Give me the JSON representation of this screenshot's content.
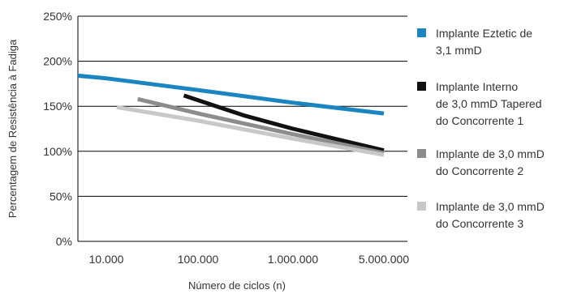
{
  "chart_data": {
    "type": "line",
    "xlabel": "Número de ciclos (n)",
    "ylabel": "Percentagem de Resistência à Fadiga",
    "x_scale": "log",
    "x_ticks": [
      10000,
      100000,
      1000000,
      5000000
    ],
    "x_tick_labels": [
      "10.000",
      "100.000",
      "1.000.000",
      "5.000.000"
    ],
    "ylim": [
      0,
      250
    ],
    "y_ticks": [
      0,
      50,
      100,
      150,
      200,
      250
    ],
    "y_tick_labels": [
      "0%",
      "50%",
      "100%",
      "150%",
      "200%",
      "250%"
    ],
    "grid": "horizontal",
    "legend_position": "right",
    "series": [
      {
        "name": "Implante Eztetic de 3,1 mmD",
        "legend_lines": [
          "Implante Eztetic de",
          "3,1 mmD"
        ],
        "color": "#1a85c0",
        "points": [
          [
            3000,
            186
          ],
          [
            10000,
            181
          ],
          [
            100000,
            168
          ],
          [
            1000000,
            154
          ],
          [
            5000000,
            142
          ]
        ]
      },
      {
        "name": "Implante Interno de 3,0 mmD Tapered do Concorrente 1",
        "legend_lines": [
          "Implante Interno",
          "de 3,0 mmD Tapered",
          "do Concorrente 1"
        ],
        "color": "#111111",
        "points": [
          [
            70000,
            162
          ],
          [
            300000,
            140
          ],
          [
            1000000,
            125
          ],
          [
            5000000,
            101
          ]
        ]
      },
      {
        "name": "Implante de 3,0 mmD do Concorrente 2",
        "legend_lines": [
          "Implante de 3,0 mmD",
          "do Concorrente 2"
        ],
        "color": "#8c8c8c",
        "points": [
          [
            22000,
            158
          ],
          [
            100000,
            142
          ],
          [
            1000000,
            119
          ],
          [
            5000000,
            98
          ]
        ]
      },
      {
        "name": "Implante de 3,0 mmD do Concorrente 3",
        "legend_lines": [
          "Implante de 3,0 mmD",
          "do Concorrente 3"
        ],
        "color": "#c8c8c8",
        "points": [
          [
            13000,
            149
          ],
          [
            100000,
            134
          ],
          [
            1000000,
            114
          ],
          [
            5000000,
            96
          ]
        ]
      }
    ]
  }
}
